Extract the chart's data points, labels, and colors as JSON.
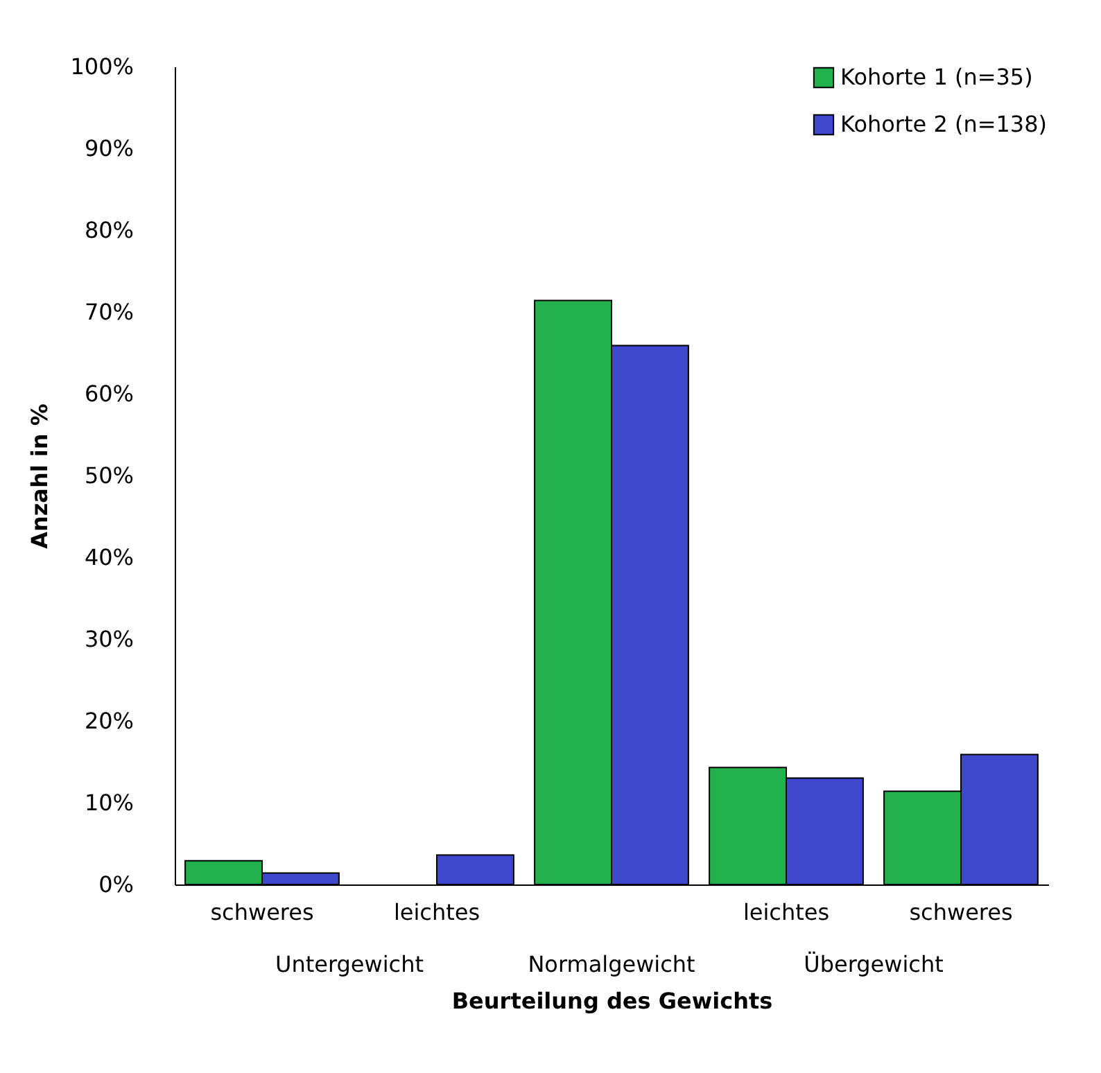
{
  "chart_data": {
    "type": "bar",
    "xlabel": "Beurteilung des Gewichts",
    "ylabel": "Anzahl in %",
    "categories": [
      "schweres",
      "leichtes",
      null,
      "leichtes",
      "schweres"
    ],
    "series": [
      {
        "name": "Kohorte 1 (n=35)",
        "color": "#22b14c",
        "values": [
          2.9,
          null,
          71.4,
          14.3,
          11.4
        ]
      },
      {
        "name": "Kohorte 2 (n=138)",
        "color": "#3f48cc",
        "values": [
          1.4,
          3.6,
          65.9,
          13.0,
          15.9
        ]
      }
    ],
    "annotations": [
      "Untergewicht",
      "Normalgewicht",
      "Übergewicht"
    ],
    "ylim": [
      0,
      100
    ],
    "yticks": [
      {
        "value": 0,
        "label": "0%"
      },
      {
        "value": 10,
        "label": "10%"
      },
      {
        "value": 20,
        "label": "20%"
      },
      {
        "value": 30,
        "label": "30%"
      },
      {
        "value": 40,
        "label": "40%"
      },
      {
        "value": 50,
        "label": "50%"
      },
      {
        "value": 60,
        "label": "60%"
      },
      {
        "value": 70,
        "label": "70%"
      },
      {
        "value": 80,
        "label": "80%"
      },
      {
        "value": 90,
        "label": "90%"
      },
      {
        "value": 100,
        "label": "100%"
      }
    ],
    "legend": "top right"
  }
}
